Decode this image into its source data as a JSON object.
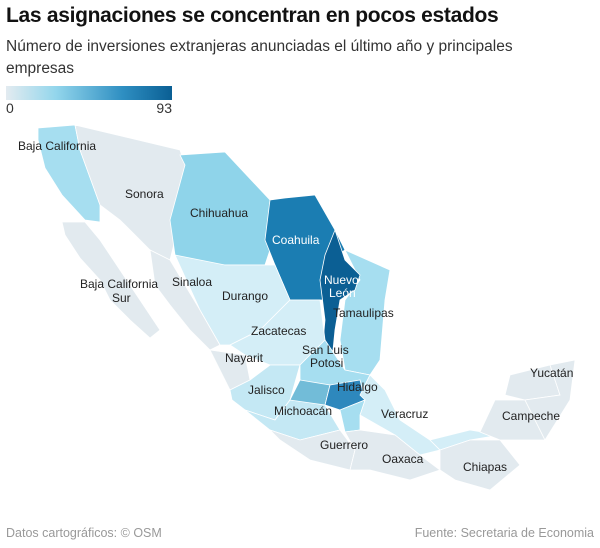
{
  "title": "Las asignaciones se concentran en pocos estados",
  "subtitle": "Número de inversiones extranjeras anunciadas el último año y principales empresas",
  "legend": {
    "min": "0",
    "max": "93",
    "colors": [
      "#e3ebf0",
      "#93d6ec",
      "#2f8fc2",
      "#0a5f94"
    ]
  },
  "labels": {
    "baja_california": "Baja California",
    "sonora": "Sonora",
    "chihuahua": "Chihuahua",
    "coahuila": "Coahuila",
    "bcs1": "Baja California",
    "bcs2": "Sur",
    "sinaloa": "Sinaloa",
    "durango": "Durango",
    "nl1": "Nuevo",
    "nl2": "León",
    "tamaulipas": "Tamaulipas",
    "zacatecas": "Zacatecas",
    "slp1": "San Luis",
    "slp2": "Potosi",
    "nayarit": "Nayarit",
    "jalisco": "Jalisco",
    "hidalgo": "Hidalgo",
    "michoacan": "Michoacán",
    "veracruz": "Veracruz",
    "guerrero": "Guerrero",
    "oaxaca": "Oaxaca",
    "chiapas": "Chiapas",
    "yucatan": "Yucatán",
    "campeche": "Campeche"
  },
  "state_colors": {
    "low": "#e2eaef",
    "light": "#a6def0",
    "mid_light": "#8fd4ea",
    "mid": "#72bcd8",
    "dark": "#1b7db2",
    "darkest": "#0b5f94",
    "queretaro": "#2e88bd"
  },
  "footer": {
    "left": "Datos cartográficos: © OSM",
    "right": "Fuente: Secretaria de Economia"
  }
}
